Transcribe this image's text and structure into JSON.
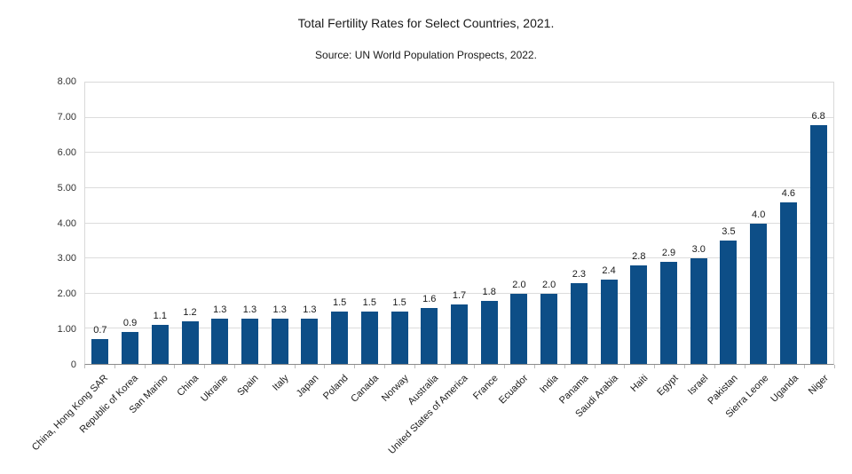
{
  "chart_data": {
    "type": "bar",
    "title": "Total Fertility Rates for Select Countries, 2021.",
    "subtitle": "Source: UN World Population Prospects, 2022.",
    "categories": [
      "China, Hong Kong SAR",
      "Republic of Korea",
      "San Marino",
      "China",
      "Ukraine",
      "Spain",
      "Italy",
      "Japan",
      "Poland",
      "Canada",
      "Norway",
      "Australia",
      "United States of America",
      "France",
      "Ecuador",
      "India",
      "Panama",
      "Saudi Arabia",
      "Haiti",
      "Egypt",
      "Israel",
      "Pakistan",
      "Sierra Leone",
      "Uganda",
      "Niger"
    ],
    "values": [
      0.7,
      0.9,
      1.1,
      1.2,
      1.3,
      1.3,
      1.3,
      1.3,
      1.5,
      1.5,
      1.5,
      1.6,
      1.7,
      1.8,
      2.0,
      2.0,
      2.3,
      2.4,
      2.8,
      2.9,
      3.0,
      3.5,
      4.0,
      4.6,
      6.8
    ],
    "value_labels": [
      "0.7",
      "0.9",
      "1.1",
      "1.2",
      "1.3",
      "1.3",
      "1.3",
      "1.3",
      "1.5",
      "1.5",
      "1.5",
      "1.6",
      "1.7",
      "1.8",
      "2.0",
      "2.0",
      "2.3",
      "2.4",
      "2.8",
      "2.9",
      "3.0",
      "3.5",
      "4.0",
      "4.6",
      "6.8"
    ],
    "xlabel": "",
    "ylabel": "",
    "ylim": [
      0,
      8
    ],
    "y_ticks": [
      "8.00",
      "7.00",
      "6.00",
      "5.00",
      "4.00",
      "3.00",
      "2.00",
      "1.00",
      "0"
    ],
    "y_tick_values": [
      8,
      7,
      6,
      5,
      4,
      3,
      2,
      1,
      0
    ],
    "grid": "horizontal",
    "legend_position": "none",
    "bar_color": "#0d4e87",
    "grid_color": "#dcdcdc",
    "text_color": "#1a1a1a"
  }
}
